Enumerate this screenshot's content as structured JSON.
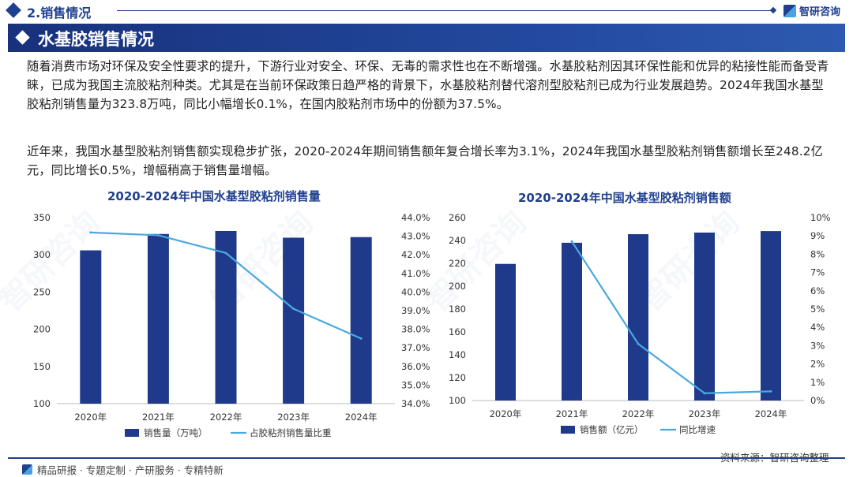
{
  "header": {
    "section_title": "2.销售情况",
    "brand_name": "智研咨询"
  },
  "banner": {
    "title": "水基胶销售情况"
  },
  "paragraphs": {
    "p1": "随着消费市场对环保及安全性要求的提升，下游行业对安全、环保、无毒的需求性也在不断增强。水基胶粘剂因其环保性能和优异的粘接性能而备受青睐，已成为我国主流胶粘剂种类。尤其是在当前环保政策日趋严格的背景下，水基胶粘剂替代溶剂型胶粘剂已成为行业发展趋势。2024年我国水基型胶粘剂销售量为323.8万吨，同比小幅增长0.1%，在国内胶粘剂市场中的份额为37.5%。",
    "p2": "近年来，我国水基型胶粘剂销售额实现稳步扩张，2020-2024年期间销售额年复合增长率为3.1%，2024年我国水基型胶粘剂销售额增长至248.2亿元，同比增长0.5%，增幅稍高于销售量增幅。"
  },
  "watermark": "智研咨询",
  "footer": {
    "tagline": "精品研报 · 专题定制 · 产研服务 · 专精特新",
    "source": "资料来源：智研咨询整理"
  },
  "colors": {
    "bar": "#1f3a8a",
    "line": "#4aa8e0",
    "accent": "#1f3f8f"
  },
  "chart_data": [
    {
      "type": "bar",
      "title": "2020-2024年中国水基型胶粘剂销售量",
      "categories": [
        "2020年",
        "2021年",
        "2022年",
        "2023年",
        "2024年"
      ],
      "left_ylim": [
        100,
        350
      ],
      "left_ticks": [
        "100",
        "150",
        "200",
        "250",
        "300",
        "350"
      ],
      "right_ylim": [
        34.0,
        44.0
      ],
      "right_ticks": [
        "34.0%",
        "35.0%",
        "36.0%",
        "37.0%",
        "38.0%",
        "39.0%",
        "40.0%",
        "41.0%",
        "42.0%",
        "43.0%",
        "44.0%"
      ],
      "series": [
        {
          "name": "销售量（万吨）",
          "kind": "bar",
          "axis": "left",
          "values": [
            306,
            328,
            332,
            323,
            323.8
          ]
        },
        {
          "name": "占胶粘剂销售量比重",
          "kind": "line",
          "axis": "right",
          "values": [
            43.2,
            43.05,
            42.1,
            39.1,
            37.5
          ]
        }
      ]
    },
    {
      "type": "bar",
      "title": "2020-2024年中国水基型胶粘剂销售额",
      "categories": [
        "2020年",
        "2021年",
        "2022年",
        "2023年",
        "2024年"
      ],
      "left_ylim": [
        100,
        260
      ],
      "left_ticks": [
        "100",
        "120",
        "140",
        "160",
        "180",
        "200",
        "220",
        "240",
        "260"
      ],
      "right_ylim": [
        0,
        10
      ],
      "right_ticks": [
        "0%",
        "1%",
        "2%",
        "3%",
        "4%",
        "5%",
        "6%",
        "7%",
        "8%",
        "9%",
        "10%"
      ],
      "series": [
        {
          "name": "销售额（亿元）",
          "kind": "bar",
          "axis": "left",
          "values": [
            219.5,
            238,
            245.5,
            246.9,
            248.2
          ]
        },
        {
          "name": "同比增速",
          "kind": "line",
          "axis": "right",
          "values": [
            null,
            8.7,
            3.1,
            0.4,
            0.5
          ]
        }
      ]
    }
  ]
}
